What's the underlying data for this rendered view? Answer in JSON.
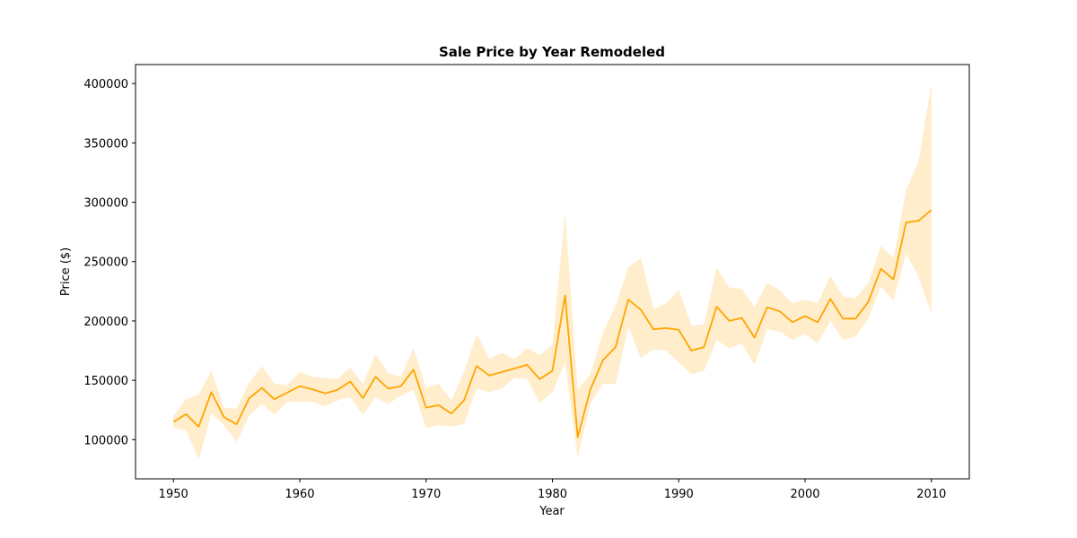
{
  "chart_data": {
    "type": "line",
    "title": "Sale Price by Year Remodeled",
    "xlabel": "Year",
    "ylabel": "Price ($)",
    "xlim": [
      1947,
      2013
    ],
    "ylim": [
      67000,
      416000
    ],
    "x_ticks": [
      1950,
      1960,
      1970,
      1980,
      1990,
      2000,
      2010
    ],
    "y_ticks": [
      100000,
      150000,
      200000,
      250000,
      300000,
      350000,
      400000
    ],
    "grid": false,
    "legend": "none",
    "colors": {
      "line": "#FFA500",
      "band": "#FFA500"
    },
    "series": [
      {
        "x": [
          1950,
          1951,
          1952,
          1953,
          1954,
          1955,
          1956,
          1957,
          1958,
          1959,
          1960,
          1961,
          1962,
          1963,
          1964,
          1965,
          1966,
          1967,
          1968,
          1969,
          1970,
          1971,
          1972,
          1973,
          1974,
          1975,
          1976,
          1977,
          1978,
          1979,
          1980,
          1981,
          1982,
          1983,
          1984,
          1985,
          1986,
          1987,
          1988,
          1989,
          1990,
          1991,
          1992,
          1993,
          1994,
          1995,
          1996,
          1997,
          1998,
          1999,
          2000,
          2001,
          2002,
          2003,
          2004,
          2005,
          2006,
          2007,
          2008,
          2009,
          2010
        ],
        "values": [
          115000,
          121500,
          111000,
          140000,
          119000,
          113000,
          135000,
          143500,
          134000,
          139500,
          145000,
          142500,
          139000,
          142000,
          149000,
          135000,
          153000,
          143000,
          145000,
          159000,
          127000,
          129000,
          122000,
          133000,
          162000,
          154000,
          157000,
          160000,
          163000,
          151000,
          158000,
          221500,
          102000,
          142000,
          167000,
          178000,
          218000,
          209500,
          193000,
          194000,
          192500,
          175000,
          178000,
          212000,
          200000,
          202500,
          186000,
          211500,
          208000,
          199000,
          204000,
          199000,
          218500,
          202000,
          202000,
          216000,
          244000,
          235000,
          283000,
          284500,
          293500
        ],
        "ci_low": [
          110000,
          108000,
          83000,
          122000,
          112000,
          98000,
          120000,
          130000,
          121000,
          132000,
          132000,
          132000,
          128000,
          133000,
          136000,
          121000,
          136000,
          130000,
          137000,
          142000,
          110000,
          112000,
          111000,
          113000,
          143000,
          140000,
          143000,
          152000,
          151000,
          131000,
          140000,
          165000,
          85000,
          130000,
          147000,
          147000,
          195000,
          169000,
          176000,
          175000,
          165000,
          155000,
          158000,
          184000,
          177000,
          181000,
          163000,
          193000,
          191000,
          184000,
          189000,
          181000,
          200000,
          184000,
          187000,
          202000,
          229000,
          217000,
          257000,
          237000,
          206000
        ],
        "ci_high": [
          120000,
          134000,
          138000,
          158000,
          127000,
          126000,
          148000,
          162000,
          147000,
          146000,
          157000,
          153000,
          152000,
          151000,
          161000,
          147000,
          172000,
          156000,
          153000,
          177000,
          144000,
          147000,
          133000,
          157000,
          189000,
          168000,
          173000,
          168000,
          177000,
          171000,
          180000,
          291000,
          142000,
          155000,
          190000,
          213000,
          245000,
          253000,
          210000,
          215000,
          226000,
          196000,
          197000,
          245000,
          228000,
          227000,
          212000,
          232000,
          226000,
          215000,
          218000,
          215000,
          238000,
          221000,
          219000,
          232000,
          263000,
          253000,
          310000,
          335000,
          400000
        ]
      }
    ]
  }
}
